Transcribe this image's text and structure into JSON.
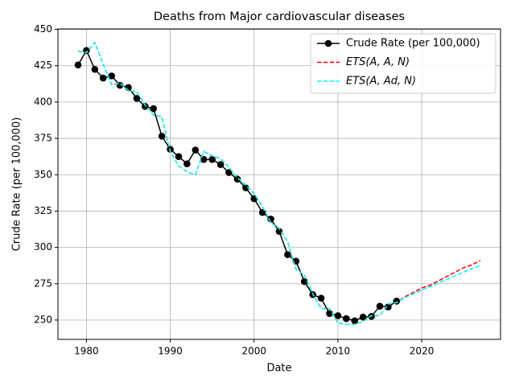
{
  "chart_data": {
    "type": "line",
    "title": "Deaths from Major cardiovascular diseases",
    "x_label": "Date",
    "y_label": "Crude Rate (per 100,000)",
    "xlim": [
      1976.6,
      2029.4
    ],
    "xticks": [
      1980,
      1990,
      2000,
      2010,
      2020
    ],
    "ylim": [
      236.7,
      450.3
    ],
    "yticks": [
      250,
      275,
      300,
      325,
      350,
      375,
      400,
      425,
      450
    ],
    "grid": true,
    "legend": "upper right",
    "series": [
      {
        "name": "Crude Rate (per 100,000)",
        "color": "#000000",
        "style": "solid",
        "marker": true,
        "x": [
          1979,
          1980,
          1981,
          1982,
          1983,
          1984,
          1985,
          1986,
          1987,
          1988,
          1989,
          1990,
          1991,
          1992,
          1993,
          1994,
          1995,
          1996,
          1997,
          1998,
          1999,
          2000,
          2001,
          2002,
          2003,
          2004,
          2005,
          2006,
          2007,
          2008,
          2009,
          2010,
          2011,
          2012,
          2013,
          2014,
          2015,
          2016,
          2017
        ],
        "values": [
          425.5,
          435.5,
          422.5,
          416.5,
          418,
          411.5,
          410,
          402.5,
          397,
          395.5,
          376.5,
          367.5,
          362.5,
          357.5,
          367,
          360.5,
          360.5,
          357,
          351.5,
          347,
          341,
          333.5,
          324,
          319.5,
          311,
          295,
          290.5,
          276.5,
          267.5,
          265,
          254.5,
          253,
          251,
          249.5,
          252,
          252.5,
          259.5,
          259,
          263
        ]
      },
      {
        "name": "ETS(A, A, N)",
        "color": "#ff0000",
        "style": "dashed",
        "marker": false,
        "x": [
          1979,
          1980,
          1981,
          1982,
          1983,
          1984,
          1985,
          1986,
          1987,
          1988,
          1989,
          1990,
          1991,
          1992,
          1993,
          1994,
          1995,
          1996,
          1997,
          1998,
          1999,
          2000,
          2001,
          2002,
          2003,
          2004,
          2005,
          2006,
          2007,
          2008,
          2009,
          2010,
          2011,
          2012,
          2013,
          2014,
          2015,
          2016,
          2017,
          2018,
          2019,
          2020,
          2021,
          2022,
          2023,
          2024,
          2025,
          2026,
          2027
        ],
        "values": [
          435,
          434,
          441,
          426,
          412,
          413,
          408,
          407,
          398,
          391,
          390,
          366,
          356,
          352,
          350,
          366,
          363,
          361,
          355,
          348,
          343,
          337,
          328,
          317,
          313,
          304,
          285,
          281,
          268,
          258,
          258,
          248,
          247,
          247,
          249,
          253,
          253,
          261,
          262,
          266,
          269,
          272,
          274,
          277,
          280,
          283,
          286,
          288,
          291
        ]
      },
      {
        "name": "ETS(A, Ad, N)",
        "color": "#00ffff",
        "style": "dashed",
        "marker": false,
        "x": [
          1979,
          1980,
          1981,
          1982,
          1983,
          1984,
          1985,
          1986,
          1987,
          1988,
          1989,
          1990,
          1991,
          1992,
          1993,
          1994,
          1995,
          1996,
          1997,
          1998,
          1999,
          2000,
          2001,
          2002,
          2003,
          2004,
          2005,
          2006,
          2007,
          2008,
          2009,
          2010,
          2011,
          2012,
          2013,
          2014,
          2015,
          2016,
          2017,
          2018,
          2019,
          2020,
          2021,
          2022,
          2023,
          2024,
          2025,
          2026,
          2027
        ],
        "values": [
          435,
          434,
          441,
          426,
          412,
          413,
          408,
          407,
          398,
          391,
          390,
          366,
          356,
          352,
          350,
          366,
          363,
          361,
          355,
          348,
          343,
          337,
          328,
          317,
          313,
          304,
          285,
          281,
          268,
          258,
          258,
          248,
          247,
          247,
          249,
          253,
          253,
          261,
          262,
          265.5,
          268,
          270.5,
          273,
          275.5,
          278,
          280.5,
          283,
          285.5,
          287.5
        ]
      }
    ]
  }
}
